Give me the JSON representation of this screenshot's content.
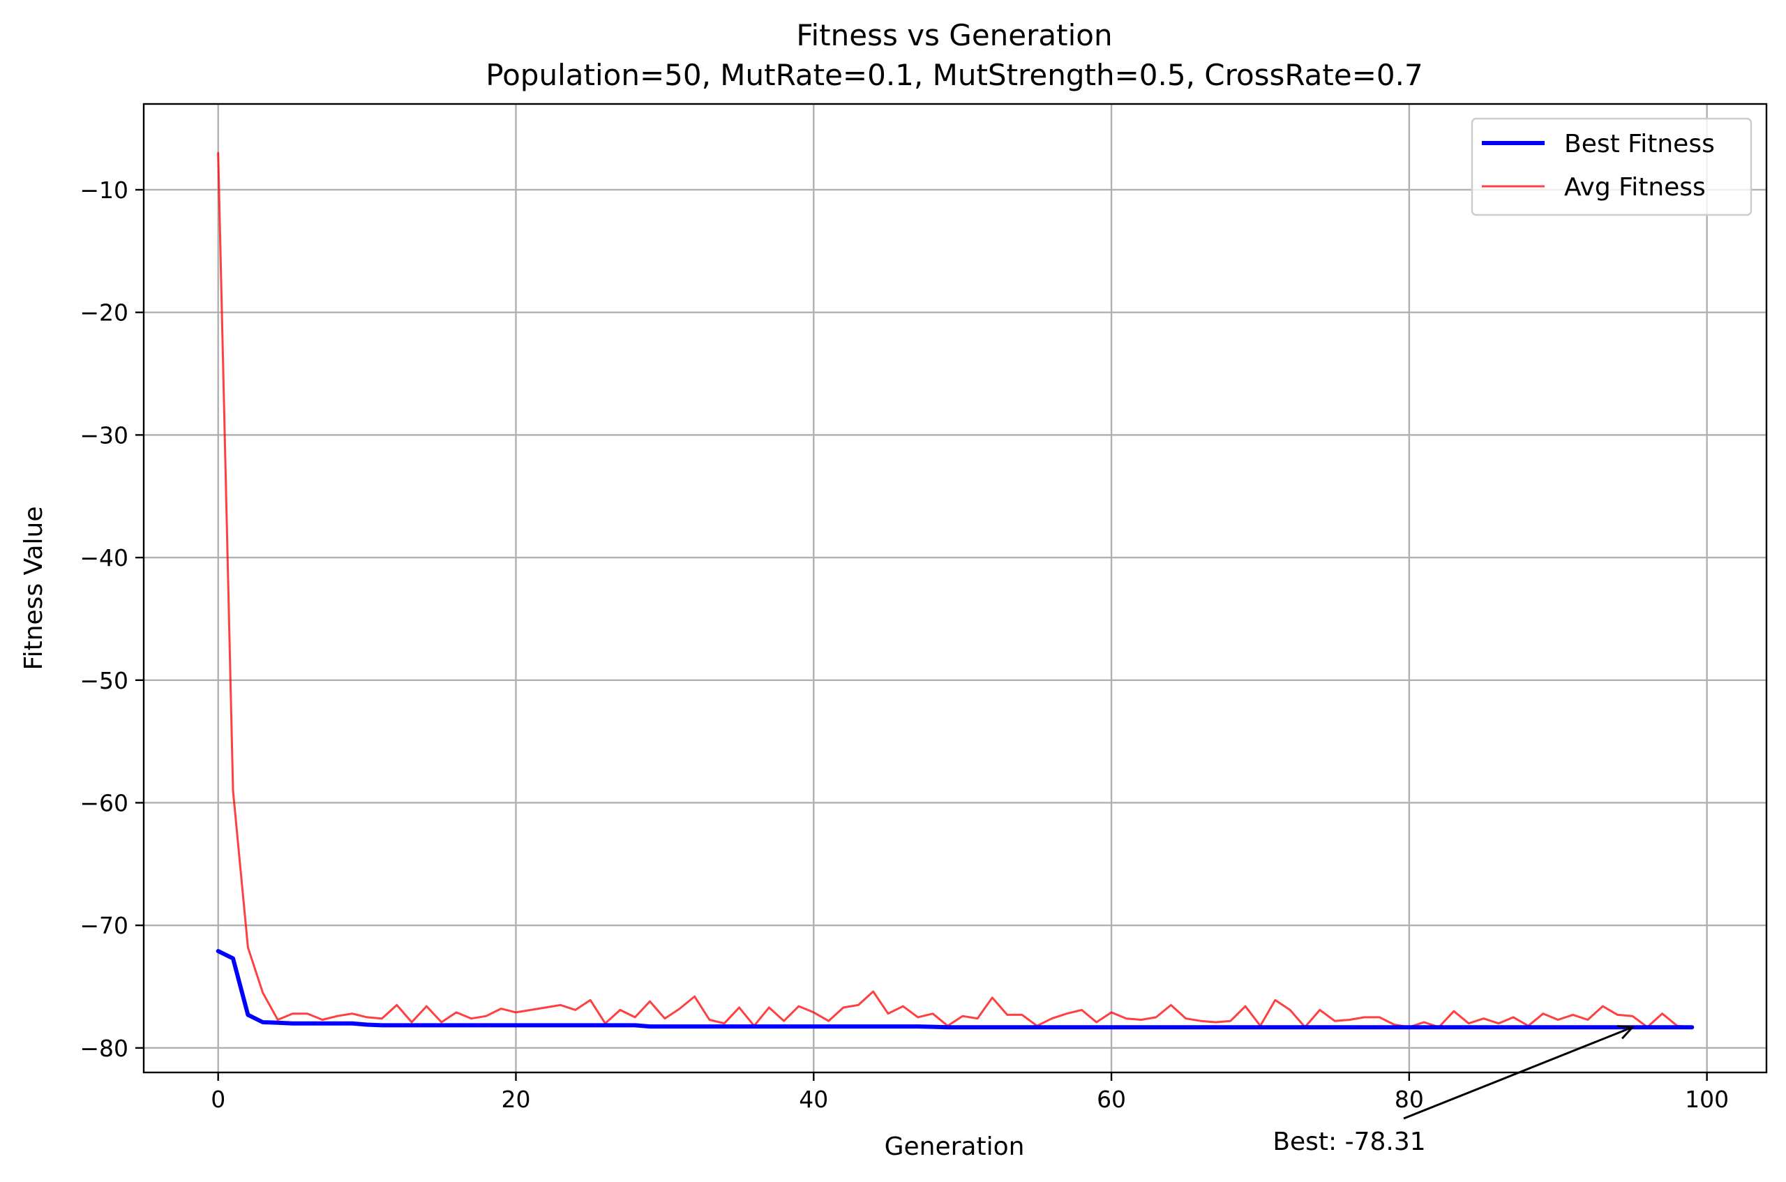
{
  "chart_data": {
    "type": "line",
    "title": "Fitness vs Generation",
    "subtitle": "Population=50, MutRate=0.1, MutStrength=0.5, CrossRate=0.7",
    "xlabel": "Generation",
    "ylabel": "Fitness Value",
    "xlim": [
      -5,
      104
    ],
    "ylim": [
      -82,
      -3
    ],
    "xticks": [
      0,
      20,
      40,
      60,
      80,
      100
    ],
    "yticks": [
      -10,
      -20,
      -30,
      -40,
      -50,
      -60,
      -70,
      -80
    ],
    "xtick_labels": [
      "0",
      "20",
      "40",
      "60",
      "80",
      "100"
    ],
    "ytick_labels": [
      "−10",
      "−20",
      "−30",
      "−40",
      "−50",
      "−60",
      "−70",
      "−80"
    ],
    "grid": true,
    "legend_position": "top-right",
    "series": [
      {
        "name": "Best Fitness",
        "color": "#0000ff",
        "values": [
          -72.1,
          -72.7,
          -77.3,
          -77.9,
          -77.95,
          -78.0,
          -78.0,
          -78.0,
          -78.0,
          -78.0,
          -78.1,
          -78.15,
          -78.15,
          -78.15,
          -78.15,
          -78.15,
          -78.15,
          -78.15,
          -78.15,
          -78.15,
          -78.15,
          -78.15,
          -78.15,
          -78.15,
          -78.15,
          -78.15,
          -78.15,
          -78.15,
          -78.15,
          -78.25,
          -78.25,
          -78.25,
          -78.25,
          -78.25,
          -78.25,
          -78.25,
          -78.25,
          -78.25,
          -78.25,
          -78.25,
          -78.25,
          -78.25,
          -78.25,
          -78.25,
          -78.25,
          -78.25,
          -78.25,
          -78.25,
          -78.28,
          -78.31,
          -78.31,
          -78.31,
          -78.31,
          -78.31,
          -78.31,
          -78.31,
          -78.31,
          -78.31,
          -78.31,
          -78.31,
          -78.31,
          -78.31,
          -78.31,
          -78.31,
          -78.31,
          -78.31,
          -78.31,
          -78.31,
          -78.31,
          -78.31,
          -78.31,
          -78.31,
          -78.31,
          -78.31,
          -78.31,
          -78.31,
          -78.31,
          -78.31,
          -78.31,
          -78.31,
          -78.31,
          -78.31,
          -78.31,
          -78.31,
          -78.31,
          -78.31,
          -78.31,
          -78.31,
          -78.31,
          -78.31,
          -78.31,
          -78.31,
          -78.31,
          -78.31,
          -78.31,
          -78.31,
          -78.31,
          -78.31,
          -78.31,
          -78.31
        ]
      },
      {
        "name": "Avg Fitness",
        "color": "#ff0000",
        "values": [
          -7.0,
          -59.0,
          -71.8,
          -75.5,
          -77.7,
          -77.2,
          -77.2,
          -77.7,
          -77.4,
          -77.2,
          -77.5,
          -77.6,
          -76.5,
          -77.9,
          -76.6,
          -77.9,
          -77.1,
          -77.6,
          -77.4,
          -76.8,
          -77.1,
          -76.9,
          -76.7,
          -76.5,
          -76.9,
          -76.1,
          -78.0,
          -76.9,
          -77.5,
          -76.2,
          -77.6,
          -76.8,
          -75.8,
          -77.7,
          -78.0,
          -76.7,
          -78.2,
          -76.7,
          -77.8,
          -76.6,
          -77.1,
          -77.8,
          -76.7,
          -76.5,
          -75.4,
          -77.2,
          -76.6,
          -77.5,
          -77.2,
          -78.2,
          -77.4,
          -77.6,
          -75.9,
          -77.3,
          -77.3,
          -78.2,
          -77.6,
          -77.2,
          -76.9,
          -77.9,
          -77.1,
          -77.6,
          -77.7,
          -77.5,
          -76.5,
          -77.6,
          -77.8,
          -77.9,
          -77.8,
          -76.6,
          -78.2,
          -76.1,
          -76.9,
          -78.3,
          -76.9,
          -77.8,
          -77.7,
          -77.5,
          -77.5,
          -78.1,
          -78.3,
          -77.9,
          -78.3,
          -77.0,
          -78.0,
          -77.6,
          -78.0,
          -77.5,
          -78.2,
          -77.2,
          -77.7,
          -77.3,
          -77.7,
          -76.6,
          -77.3,
          -77.4,
          -78.3,
          -77.2,
          -78.2,
          -78.3
        ]
      }
    ],
    "annotation": {
      "text": "Best: -78.31",
      "x": 95,
      "y": -78.31
    }
  }
}
